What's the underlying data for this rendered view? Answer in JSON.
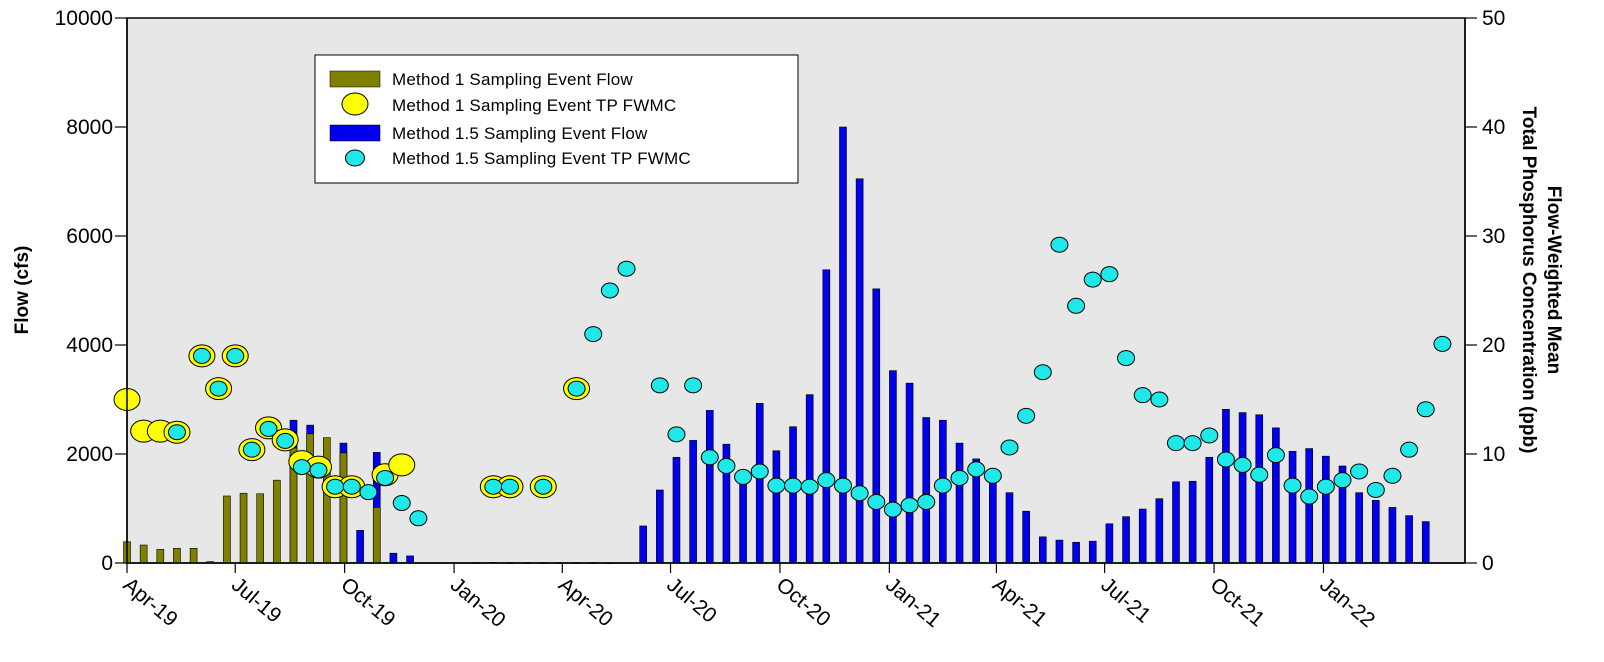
{
  "chart_data": {
    "type": "bar",
    "xlabel": "",
    "ylabel": "Flow (cfs)",
    "y2label_line1": "Flow-Weighted Mean",
    "y2label_line2": "Total Phosphorus Concentration (ppb)",
    "ylim": [
      0,
      10000
    ],
    "y2lim": [
      0,
      50
    ],
    "yticks": [
      "0",
      "2000",
      "4000",
      "6000",
      "8000",
      "10000"
    ],
    "y2ticks": [
      "0",
      "10",
      "20",
      "30",
      "40",
      "50"
    ],
    "x_tick_labels": [
      "Apr-19",
      "Jul-19",
      "Oct-19",
      "Jan-20",
      "Apr-20",
      "Jul-20",
      "Oct-20",
      "Jan-21",
      "Apr-21",
      "Jul-21",
      "Oct-21",
      "Jan-22"
    ],
    "x_domain": [
      "2019-04-01",
      "2022-04-30"
    ],
    "grid": false,
    "legend_placement": "top-left",
    "colors": {
      "plot_bg": "#e7e7e7",
      "method1_flow": "#808000",
      "method1_tp": "#ffff00",
      "method15_flow": "#0000ee",
      "method15_tp": "#1ee8e8"
    },
    "series": [
      {
        "name": "Method 1.5 Sampling Event Flow",
        "kind": "bar",
        "points": [
          [
            "2019-08-19",
            2620
          ],
          [
            "2019-09-02",
            2530
          ],
          [
            "2019-09-30",
            2200
          ],
          [
            "2019-10-14",
            600
          ],
          [
            "2019-10-28",
            2030
          ],
          [
            "2019-11-11",
            180
          ],
          [
            "2019-11-25",
            130
          ],
          [
            "2020-06-08",
            680
          ],
          [
            "2020-06-22",
            1340
          ],
          [
            "2020-07-06",
            1940
          ],
          [
            "2020-07-20",
            2250
          ],
          [
            "2020-08-03",
            2800
          ],
          [
            "2020-08-17",
            2180
          ],
          [
            "2020-08-31",
            1700
          ],
          [
            "2020-09-14",
            2930
          ],
          [
            "2020-09-28",
            2060
          ],
          [
            "2020-10-12",
            2500
          ],
          [
            "2020-10-26",
            3090
          ],
          [
            "2020-11-09",
            5380
          ],
          [
            "2020-11-23",
            8000
          ],
          [
            "2020-12-07",
            7050
          ],
          [
            "2020-12-21",
            5030
          ],
          [
            "2021-01-04",
            3530
          ],
          [
            "2021-01-18",
            3300
          ],
          [
            "2021-02-01",
            2670
          ],
          [
            "2021-02-15",
            2620
          ],
          [
            "2021-03-01",
            2200
          ],
          [
            "2021-03-15",
            1910
          ],
          [
            "2021-03-29",
            1520
          ],
          [
            "2021-04-12",
            1290
          ],
          [
            "2021-04-26",
            950
          ],
          [
            "2021-05-10",
            480
          ],
          [
            "2021-05-24",
            420
          ],
          [
            "2021-06-07",
            380
          ],
          [
            "2021-06-21",
            400
          ],
          [
            "2021-07-05",
            720
          ],
          [
            "2021-07-19",
            850
          ],
          [
            "2021-08-02",
            990
          ],
          [
            "2021-08-16",
            1180
          ],
          [
            "2021-08-30",
            1490
          ],
          [
            "2021-09-13",
            1500
          ],
          [
            "2021-09-27",
            1940
          ],
          [
            "2021-10-11",
            2820
          ],
          [
            "2021-10-25",
            2760
          ],
          [
            "2021-11-08",
            2720
          ],
          [
            "2021-11-22",
            2480
          ],
          [
            "2021-12-06",
            2050
          ],
          [
            "2021-12-20",
            2100
          ],
          [
            "2022-01-03",
            1960
          ],
          [
            "2022-01-17",
            1780
          ],
          [
            "2022-01-31",
            1290
          ],
          [
            "2022-02-14",
            1150
          ],
          [
            "2022-02-28",
            1020
          ],
          [
            "2022-03-14",
            870
          ],
          [
            "2022-03-28",
            760
          ]
        ]
      },
      {
        "name": "Method 1 Sampling Event Flow",
        "kind": "bar",
        "points": [
          [
            "2019-04-01",
            390
          ],
          [
            "2019-04-15",
            330
          ],
          [
            "2019-04-29",
            250
          ],
          [
            "2019-05-13",
            270
          ],
          [
            "2019-05-27",
            270
          ],
          [
            "2019-06-10",
            25
          ],
          [
            "2019-06-24",
            1230
          ],
          [
            "2019-07-08",
            1280
          ],
          [
            "2019-07-22",
            1270
          ],
          [
            "2019-08-05",
            1520
          ],
          [
            "2019-08-19",
            2110
          ],
          [
            "2019-09-02",
            2370
          ],
          [
            "2019-09-16",
            2300
          ],
          [
            "2019-09-30",
            2020
          ],
          [
            "2019-10-28",
            1020
          ],
          [
            "2020-01-20",
            8
          ],
          [
            "2020-02-03",
            12
          ],
          [
            "2020-02-17",
            8
          ],
          [
            "2020-03-02",
            8
          ],
          [
            "2020-03-16",
            5
          ],
          [
            "2020-03-30",
            5
          ],
          [
            "2020-04-13",
            5
          ],
          [
            "2020-04-27",
            5
          ],
          [
            "2020-05-11",
            5
          ]
        ]
      },
      {
        "name": "Method 1 Sampling Event TP FWMC",
        "kind": "point",
        "axis": "y2",
        "points": [
          [
            "2019-04-01",
            15.0
          ],
          [
            "2019-04-15",
            12.1
          ],
          [
            "2019-04-29",
            12.1
          ],
          [
            "2019-05-13",
            12.0
          ],
          [
            "2019-06-03",
            19.0
          ],
          [
            "2019-06-17",
            16.0
          ],
          [
            "2019-07-01",
            19.0
          ],
          [
            "2019-07-15",
            10.4
          ],
          [
            "2019-07-29",
            12.4
          ],
          [
            "2019-08-12",
            11.3
          ],
          [
            "2019-08-26",
            9.3
          ],
          [
            "2019-09-09",
            8.8
          ],
          [
            "2019-09-23",
            7.0
          ],
          [
            "2019-10-07",
            7.0
          ],
          [
            "2019-11-04",
            8.1
          ],
          [
            "2019-11-18",
            9.0
          ],
          [
            "2020-02-03",
            7.0
          ],
          [
            "2020-02-17",
            7.0
          ],
          [
            "2020-03-16",
            7.0
          ],
          [
            "2020-04-13",
            16.0
          ]
        ]
      },
      {
        "name": "Method 1.5 Sampling Event TP FWMC",
        "kind": "point",
        "axis": "y2",
        "points": [
          [
            "2019-05-13",
            12.0
          ],
          [
            "2019-06-03",
            19.0
          ],
          [
            "2019-06-17",
            16.0
          ],
          [
            "2019-07-01",
            19.0
          ],
          [
            "2019-07-15",
            10.4
          ],
          [
            "2019-07-29",
            12.3
          ],
          [
            "2019-08-12",
            11.2
          ],
          [
            "2019-08-26",
            8.8
          ],
          [
            "2019-09-09",
            8.5
          ],
          [
            "2019-09-23",
            7.0
          ],
          [
            "2019-10-07",
            7.0
          ],
          [
            "2019-10-21",
            6.5
          ],
          [
            "2019-11-04",
            7.8
          ],
          [
            "2019-11-18",
            5.5
          ],
          [
            "2019-12-02",
            4.1
          ],
          [
            "2020-02-03",
            7.0
          ],
          [
            "2020-02-17",
            7.0
          ],
          [
            "2020-03-16",
            7.0
          ],
          [
            "2020-04-13",
            16.0
          ],
          [
            "2020-04-27",
            21.0
          ],
          [
            "2020-05-11",
            25.0
          ],
          [
            "2020-05-25",
            27.0
          ],
          [
            "2020-06-22",
            16.3
          ],
          [
            "2020-07-06",
            11.8
          ],
          [
            "2020-07-20",
            16.3
          ],
          [
            "2020-08-03",
            9.7
          ],
          [
            "2020-08-17",
            8.9
          ],
          [
            "2020-08-31",
            7.9
          ],
          [
            "2020-09-14",
            8.4
          ],
          [
            "2020-09-28",
            7.1
          ],
          [
            "2020-10-12",
            7.1
          ],
          [
            "2020-10-26",
            7.0
          ],
          [
            "2020-11-09",
            7.6
          ],
          [
            "2020-11-23",
            7.1
          ],
          [
            "2020-12-07",
            6.4
          ],
          [
            "2020-12-21",
            5.6
          ],
          [
            "2021-01-04",
            4.9
          ],
          [
            "2021-01-18",
            5.3
          ],
          [
            "2021-02-01",
            5.6
          ],
          [
            "2021-02-15",
            7.1
          ],
          [
            "2021-03-01",
            7.8
          ],
          [
            "2021-03-15",
            8.6
          ],
          [
            "2021-03-29",
            8.0
          ],
          [
            "2021-04-12",
            10.6
          ],
          [
            "2021-04-26",
            13.5
          ],
          [
            "2021-05-10",
            17.5
          ],
          [
            "2021-05-24",
            29.2
          ],
          [
            "2021-06-07",
            23.6
          ],
          [
            "2021-06-21",
            26.0
          ],
          [
            "2021-07-05",
            26.5
          ],
          [
            "2021-07-19",
            18.8
          ],
          [
            "2021-08-02",
            15.4
          ],
          [
            "2021-08-16",
            15.0
          ],
          [
            "2021-08-30",
            11.0
          ],
          [
            "2021-09-13",
            11.0
          ],
          [
            "2021-09-27",
            11.7
          ],
          [
            "2021-10-11",
            9.5
          ],
          [
            "2021-10-25",
            9.0
          ],
          [
            "2021-11-08",
            8.1
          ],
          [
            "2021-11-22",
            9.9
          ],
          [
            "2021-12-06",
            7.1
          ],
          [
            "2021-12-20",
            6.1
          ],
          [
            "2022-01-03",
            7.0
          ],
          [
            "2022-01-17",
            7.6
          ],
          [
            "2022-01-31",
            8.4
          ],
          [
            "2022-02-14",
            6.7
          ],
          [
            "2022-02-28",
            8.0
          ],
          [
            "2022-03-14",
            10.4
          ],
          [
            "2022-03-28",
            14.1
          ],
          [
            "2022-04-11",
            20.1
          ]
        ]
      }
    ],
    "legend": [
      "Method 1 Sampling Event Flow",
      "Method 1 Sampling Event TP FWMC",
      "Method 1.5 Sampling Event Flow",
      "Method 1.5 Sampling Event TP FWMC"
    ]
  }
}
